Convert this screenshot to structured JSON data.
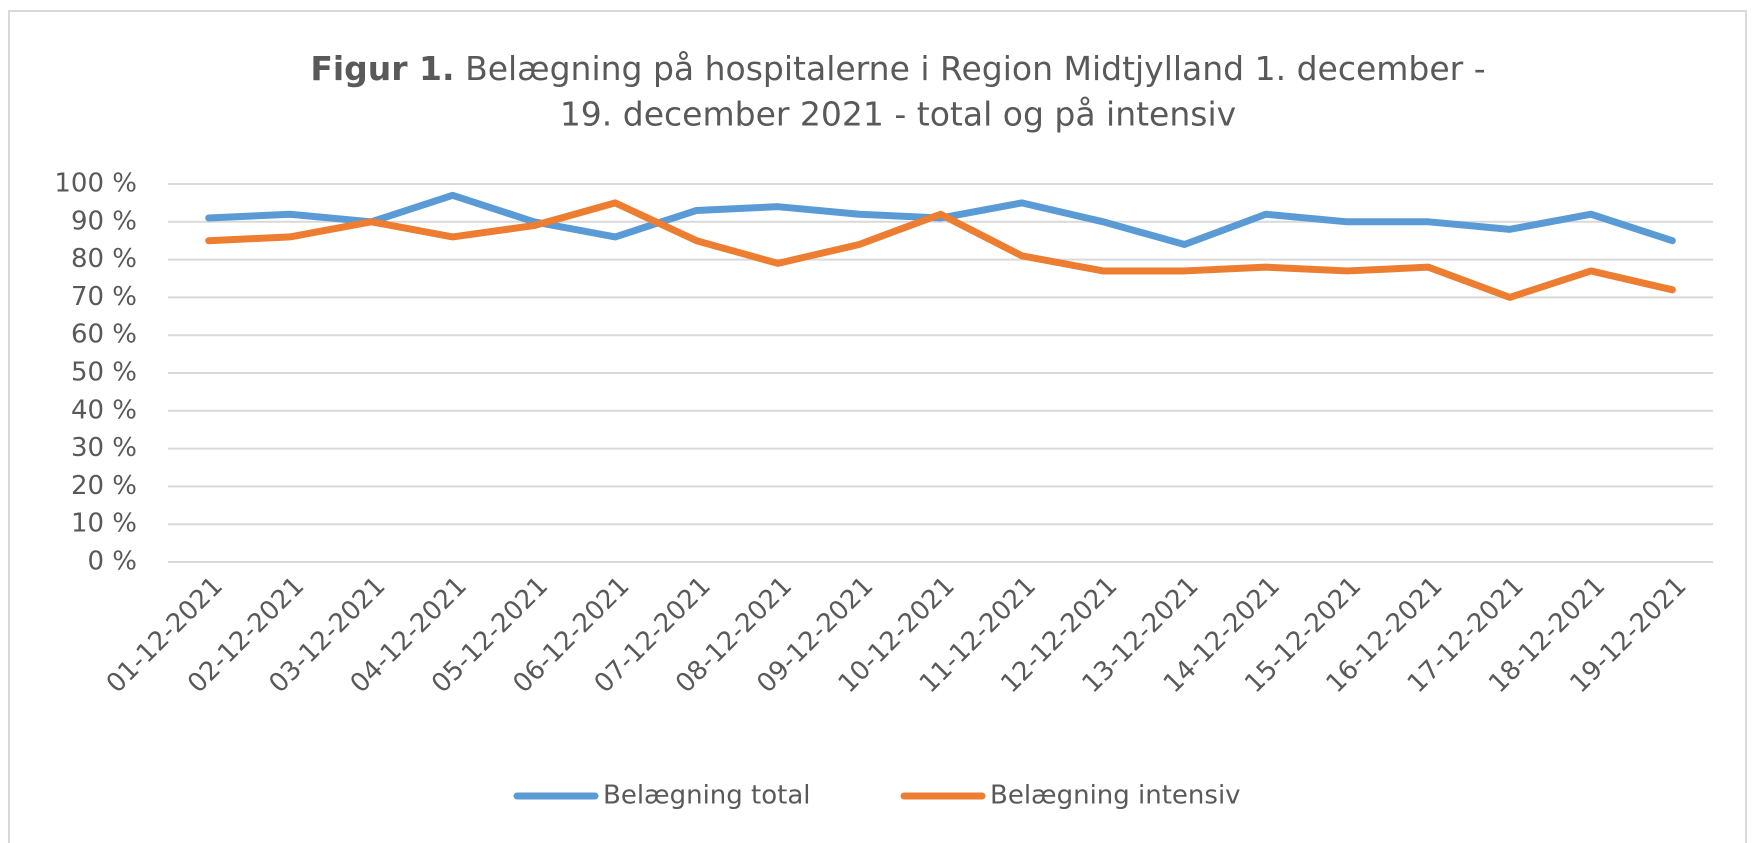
{
  "chart_data": {
    "type": "line",
    "title": {
      "bold": "Figur 1.",
      "lines": [
        "Belægning på hospitalerne i Region Midtjylland 1. december -",
        "19. december 2021 - total og på intensiv"
      ]
    },
    "categories": [
      "01-12-2021",
      "02-12-2021",
      "03-12-2021",
      "04-12-2021",
      "05-12-2021",
      "06-12-2021",
      "07-12-2021",
      "08-12-2021",
      "09-12-2021",
      "10-12-2021",
      "11-12-2021",
      "12-12-2021",
      "13-12-2021",
      "14-12-2021",
      "15-12-2021",
      "16-12-2021",
      "17-12-2021",
      "18-12-2021",
      "19-12-2021"
    ],
    "series": [
      {
        "name": "Belægning total",
        "color": "#5b9bd5",
        "values": [
          91,
          92,
          90,
          97,
          90,
          86,
          93,
          94,
          92,
          91,
          95,
          90,
          84,
          92,
          90,
          90,
          88,
          92,
          85
        ]
      },
      {
        "name": "Belægning intensiv",
        "color": "#ed7d31",
        "values": [
          85,
          86,
          90,
          86,
          89,
          95,
          85,
          79,
          84,
          92,
          81,
          77,
          77,
          78,
          77,
          78,
          70,
          77,
          72
        ]
      }
    ],
    "ylim": [
      0,
      100
    ],
    "yticks": [
      {
        "value": 0,
        "label": "0 %"
      },
      {
        "value": 10,
        "label": "10 %"
      },
      {
        "value": 20,
        "label": "20 %"
      },
      {
        "value": 30,
        "label": "30 %"
      },
      {
        "value": 40,
        "label": "40 %"
      },
      {
        "value": 50,
        "label": "50 %"
      },
      {
        "value": 60,
        "label": "60 %"
      },
      {
        "value": 70,
        "label": "70 %"
      },
      {
        "value": 80,
        "label": "80 %"
      },
      {
        "value": 90,
        "label": "90 %"
      },
      {
        "value": 100,
        "label": "100 %"
      }
    ],
    "grid": true,
    "legend": "bottom"
  }
}
